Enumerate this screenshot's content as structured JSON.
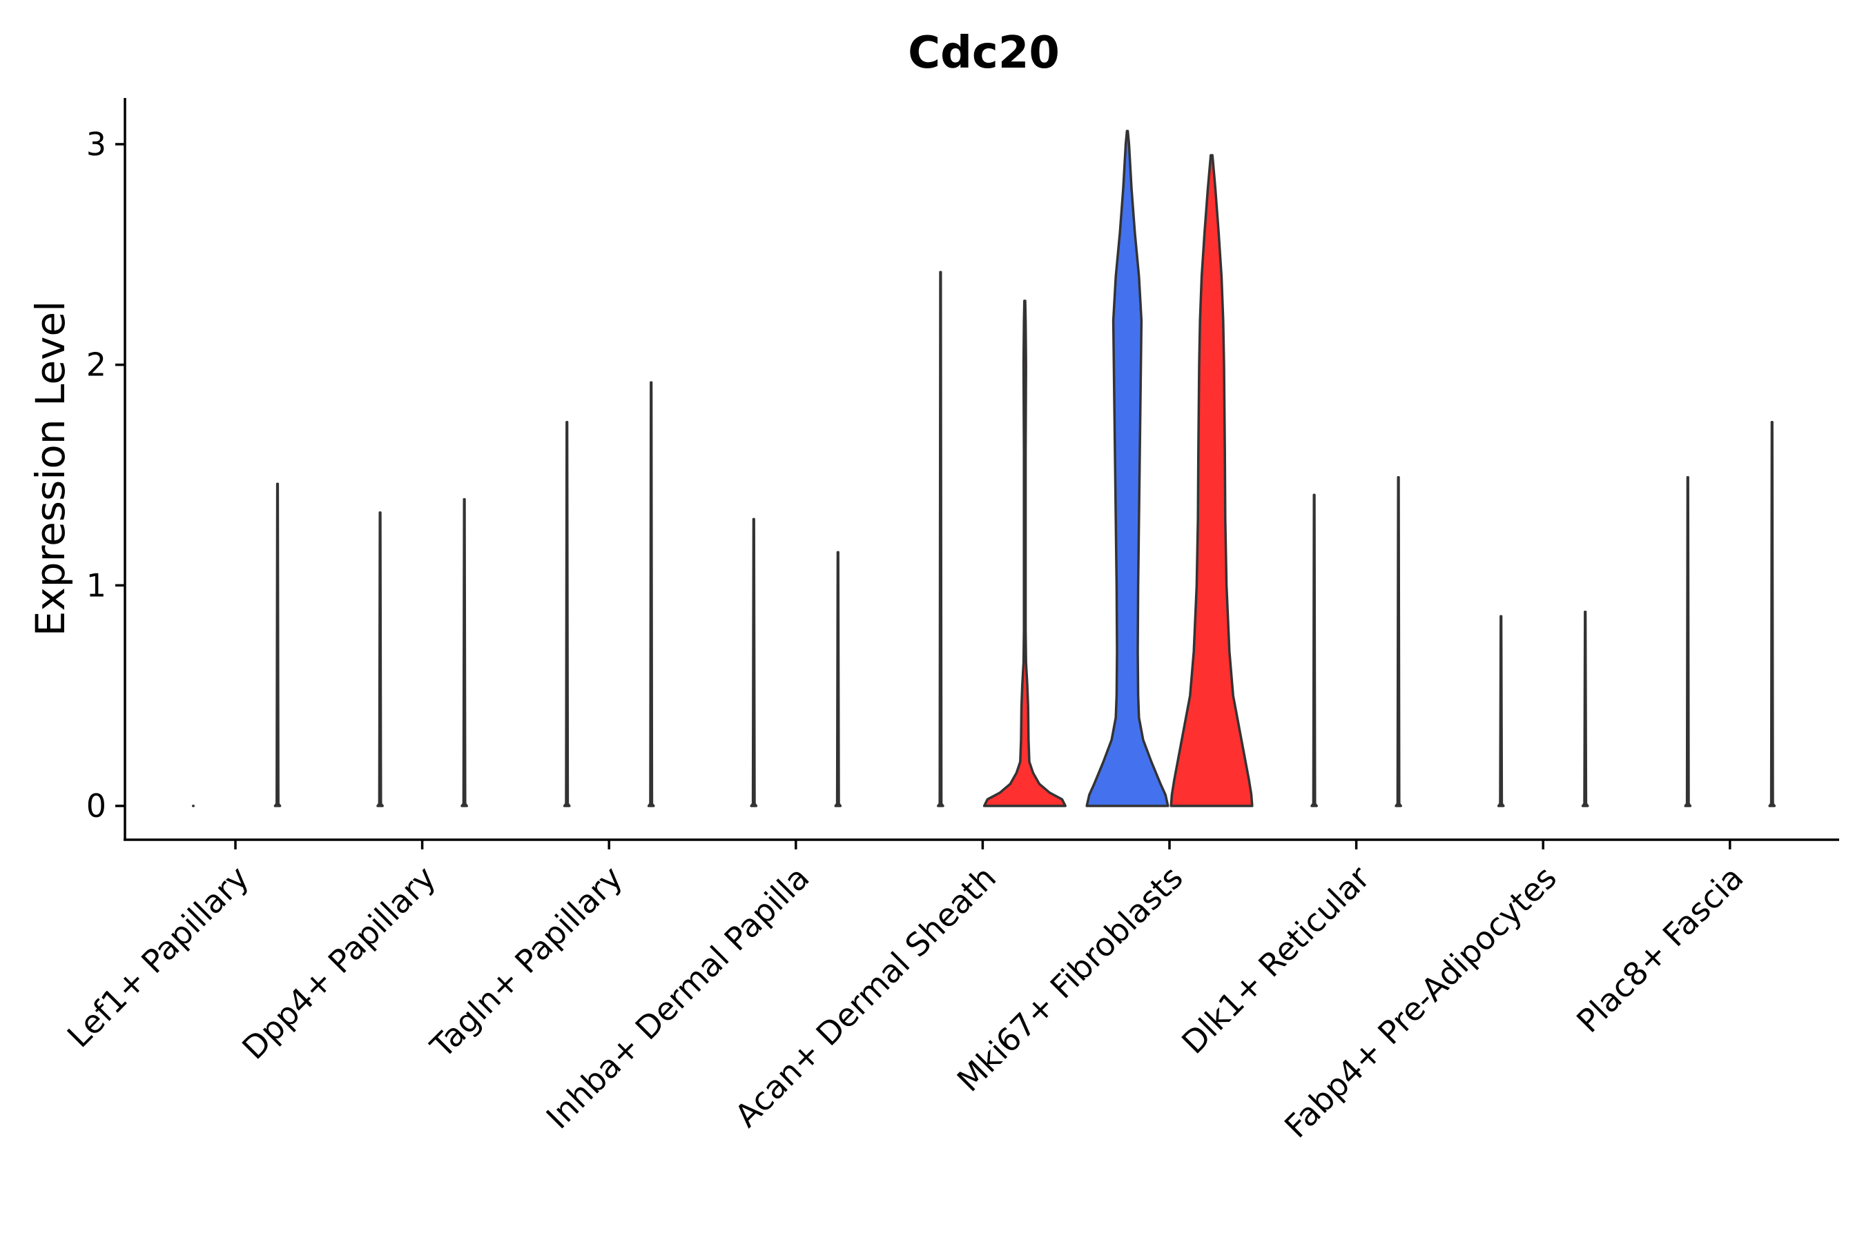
{
  "chart_data": {
    "type": "violin",
    "title": "Cdc20",
    "xlabel": "",
    "ylabel": "Expression Level",
    "ylim": [
      -0.15,
      3.2
    ],
    "yticks": [
      0,
      1,
      2,
      3
    ],
    "grid": false,
    "legend": "none",
    "colors": {
      "group1": "#4472EE",
      "group2": "#FF3030",
      "outline": "#333333"
    },
    "categories": [
      "Lef1+ Papillary",
      "Dpp4+ Papillary",
      "Tagln+ Papillary",
      "Inhba+ Dermal Papilla",
      "Acan+ Dermal Sheath",
      "Mki67+ Fibroblasts",
      "Dlk1+ Reticular",
      "Fabp4+ Pre-Adipocytes",
      "Plac8+ Fascia"
    ],
    "series": [
      {
        "name": "group1",
        "color": "#4472EE",
        "max_values": [
          0.0,
          1.33,
          1.74,
          1.3,
          2.42,
          3.06,
          1.41,
          0.86,
          1.49
        ],
        "shapes": [
          [
            [
              0,
              0.005
            ]
          ],
          [
            [
              0,
              0.06
            ],
            [
              0.01,
              0.02
            ],
            [
              1.33,
              0.006
            ]
          ],
          [
            [
              0,
              0.06
            ],
            [
              0.01,
              0.02
            ],
            [
              1.74,
              0.006
            ]
          ],
          [
            [
              0,
              0.06
            ],
            [
              0.01,
              0.02
            ],
            [
              1.3,
              0.006
            ]
          ],
          [
            [
              0,
              0.06
            ],
            [
              0.01,
              0.02
            ],
            [
              2.42,
              0.006
            ]
          ],
          [
            [
              0,
              0.98
            ],
            [
              0.05,
              0.92
            ],
            [
              0.1,
              0.8
            ],
            [
              0.2,
              0.58
            ],
            [
              0.3,
              0.38
            ],
            [
              0.4,
              0.28
            ],
            [
              0.5,
              0.26
            ],
            [
              0.7,
              0.25
            ],
            [
              1.0,
              0.26
            ],
            [
              1.3,
              0.28
            ],
            [
              1.6,
              0.3
            ],
            [
              1.9,
              0.32
            ],
            [
              2.2,
              0.34
            ],
            [
              2.4,
              0.28
            ],
            [
              2.6,
              0.18
            ],
            [
              2.8,
              0.1
            ],
            [
              3.0,
              0.04
            ],
            [
              3.06,
              0.01
            ]
          ],
          [
            [
              0,
              0.06
            ],
            [
              0.01,
              0.02
            ],
            [
              1.41,
              0.006
            ]
          ],
          [
            [
              0,
              0.06
            ],
            [
              0.01,
              0.02
            ],
            [
              0.86,
              0.006
            ]
          ],
          [
            [
              0,
              0.06
            ],
            [
              0.01,
              0.02
            ],
            [
              1.49,
              0.006
            ]
          ]
        ]
      },
      {
        "name": "group2",
        "color": "#FF3030",
        "max_values": [
          1.46,
          1.39,
          1.92,
          1.15,
          2.29,
          2.95,
          1.49,
          0.88,
          1.74
        ],
        "shapes": [
          [
            [
              0,
              0.06
            ],
            [
              0.01,
              0.02
            ],
            [
              1.46,
              0.006
            ]
          ],
          [
            [
              0,
              0.06
            ],
            [
              0.01,
              0.02
            ],
            [
              1.39,
              0.006
            ]
          ],
          [
            [
              0,
              0.06
            ],
            [
              0.01,
              0.02
            ],
            [
              1.92,
              0.006
            ]
          ],
          [
            [
              0,
              0.06
            ],
            [
              0.01,
              0.02
            ],
            [
              1.15,
              0.006
            ]
          ],
          [
            [
              0,
              0.98
            ],
            [
              0.03,
              0.9
            ],
            [
              0.06,
              0.6
            ],
            [
              0.1,
              0.35
            ],
            [
              0.15,
              0.2
            ],
            [
              0.2,
              0.11
            ],
            [
              0.3,
              0.09
            ],
            [
              0.45,
              0.08
            ],
            [
              0.55,
              0.06
            ],
            [
              0.65,
              0.03
            ],
            [
              0.8,
              0.02
            ],
            [
              1.2,
              0.02
            ],
            [
              1.6,
              0.02
            ],
            [
              2.0,
              0.03
            ],
            [
              2.2,
              0.02
            ],
            [
              2.29,
              0.01
            ]
          ],
          [
            [
              0,
              0.98
            ],
            [
              0.05,
              0.96
            ],
            [
              0.12,
              0.9
            ],
            [
              0.2,
              0.82
            ],
            [
              0.3,
              0.72
            ],
            [
              0.4,
              0.62
            ],
            [
              0.5,
              0.52
            ],
            [
              0.7,
              0.43
            ],
            [
              1.0,
              0.36
            ],
            [
              1.3,
              0.33
            ],
            [
              1.6,
              0.32
            ],
            [
              2.0,
              0.3
            ],
            [
              2.2,
              0.28
            ],
            [
              2.4,
              0.24
            ],
            [
              2.6,
              0.17
            ],
            [
              2.8,
              0.09
            ],
            [
              2.95,
              0.02
            ]
          ],
          [
            [
              0,
              0.06
            ],
            [
              0.01,
              0.02
            ],
            [
              1.49,
              0.006
            ]
          ],
          [
            [
              0,
              0.06
            ],
            [
              0.01,
              0.02
            ],
            [
              0.88,
              0.006
            ]
          ],
          [
            [
              0,
              0.06
            ],
            [
              0.01,
              0.02
            ],
            [
              1.74,
              0.006
            ]
          ]
        ]
      }
    ]
  }
}
